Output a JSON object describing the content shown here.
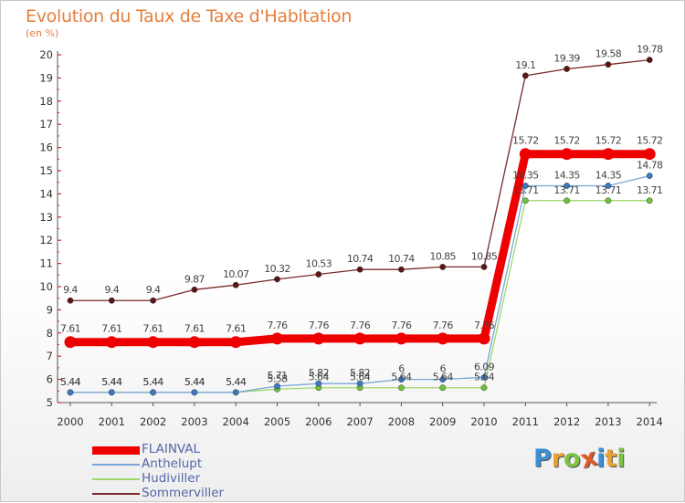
{
  "title": "Evolution du Taux de Taxe d'Habitation",
  "subtitle": "(en %)",
  "brand": {
    "letters": [
      {
        "ch": "P",
        "color": "#3a8fd6"
      },
      {
        "ch": "r",
        "color": "#e8a033"
      },
      {
        "ch": "o",
        "color": "#7ec242"
      },
      {
        "ch": "x",
        "color": "#e05a2a"
      },
      {
        "ch": "i",
        "color": "#3a8fd6"
      },
      {
        "ch": "t",
        "color": "#e8a033"
      },
      {
        "ch": "i",
        "color": "#7ec242"
      }
    ]
  },
  "chart_data": {
    "type": "line",
    "title": "Evolution du Taux de Taxe d'Habitation",
    "ylabel": "(en %)",
    "xlabel": "",
    "x": [
      "2000",
      "2001",
      "2002",
      "2003",
      "2004",
      "2005",
      "2006",
      "2007",
      "2008",
      "2009",
      "2010",
      "2011",
      "2012",
      "2013",
      "2014"
    ],
    "ylim": [
      5,
      20
    ],
    "yticks": [
      5,
      6,
      7,
      8,
      9,
      10,
      11,
      12,
      13,
      14,
      15,
      16,
      17,
      18,
      19,
      20
    ],
    "grid": false,
    "legend": "bottom-left",
    "series": [
      {
        "name": "Sommerviller",
        "color": "#7a2a2a",
        "marker": "#5a1515",
        "width": 1.3,
        "values": [
          9.4,
          9.4,
          9.4,
          9.87,
          10.07,
          10.32,
          10.53,
          10.74,
          10.74,
          10.85,
          10.85,
          19.1,
          19.39,
          19.58,
          19.78
        ],
        "labels": [
          "9.4",
          "9.4",
          "9.4",
          "9.87",
          "10.07",
          "10.32",
          "10.53",
          "10.74",
          "10.74",
          "10.85",
          "10.85",
          "19.1",
          "19.39",
          "19.58",
          "19.78"
        ]
      },
      {
        "name": "Hudiviller",
        "color": "#9ed86a",
        "marker": "#6ec23a",
        "width": 1.3,
        "values": [
          5.44,
          5.44,
          5.44,
          5.44,
          5.44,
          5.58,
          5.64,
          5.64,
          5.64,
          5.64,
          5.64,
          13.71,
          13.71,
          13.71,
          13.71
        ],
        "labels": [
          "5.44",
          "5.44",
          "5.44",
          "5.44",
          "5.44",
          "5.58",
          "5.64",
          "5.64",
          "5.64",
          "5.64",
          "5.64",
          "13.71",
          "13.71",
          "13.71",
          "13.71"
        ]
      },
      {
        "name": "Anthelupt",
        "color": "#7aa6d8",
        "marker": "#3a78c0",
        "width": 1.3,
        "values": [
          5.44,
          5.44,
          5.44,
          5.44,
          5.44,
          5.71,
          5.82,
          5.82,
          6,
          6,
          6.09,
          14.35,
          14.35,
          14.35,
          14.78
        ],
        "labels": [
          "5.44",
          "5.44",
          "5.44",
          "5.44",
          "5.44",
          "5.71",
          "5.82",
          "5.82",
          "6",
          "6",
          "6.09",
          "14.35",
          "14.35",
          "14.35",
          "14.78"
        ]
      },
      {
        "name": "FLAINVAL",
        "color": "#ee0000",
        "marker": "#ee0000",
        "width": 9,
        "values": [
          7.61,
          7.61,
          7.61,
          7.61,
          7.61,
          7.76,
          7.76,
          7.76,
          7.76,
          7.76,
          7.76,
          15.72,
          15.72,
          15.72,
          15.72
        ],
        "labels": [
          "7.61",
          "7.61",
          "7.61",
          "7.61",
          "7.61",
          "7.76",
          "7.76",
          "7.76",
          "7.76",
          "7.76",
          "7.76",
          "15.72",
          "15.72",
          "15.72",
          "15.72"
        ]
      }
    ]
  },
  "legend": {
    "items": [
      {
        "name": "FLAINVAL",
        "color": "#ee0000",
        "width": 9
      },
      {
        "name": "Anthelupt",
        "color": "#7aa6d8",
        "width": 2
      },
      {
        "name": "Hudiviller",
        "color": "#9ed86a",
        "width": 2
      },
      {
        "name": "Sommerviller",
        "color": "#7a2a2a",
        "width": 2
      }
    ]
  }
}
